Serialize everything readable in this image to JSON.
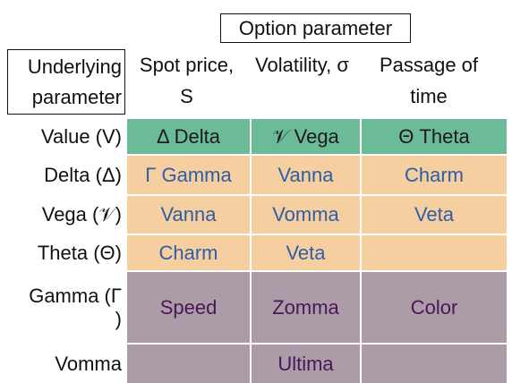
{
  "header": {
    "title": "Option parameter",
    "row_header": "Underlying parameter",
    "columns": [
      "Spot price, S",
      "Volatility, σ",
      "Passage of time"
    ]
  },
  "table": {
    "rows": [
      {
        "label": "Value (V)",
        "cells": [
          "Δ Delta",
          "𝒱 Vega",
          "Θ Theta"
        ]
      },
      {
        "label": "Delta (Δ)",
        "cells": [
          "Γ Gamma",
          "Vanna",
          "Charm"
        ]
      },
      {
        "label": "Vega (𝒱)",
        "cells": [
          "Vanna",
          "Vomma",
          "Veta"
        ]
      },
      {
        "label": "Theta (Θ)",
        "cells": [
          "Charm",
          "Veta",
          null
        ]
      },
      {
        "label": "Gamma (Γ )",
        "cells": [
          "Speed",
          "Zomma",
          "Color"
        ]
      },
      {
        "label": "Vomma",
        "cells": [
          null,
          "Ultima",
          null
        ]
      }
    ]
  }
}
